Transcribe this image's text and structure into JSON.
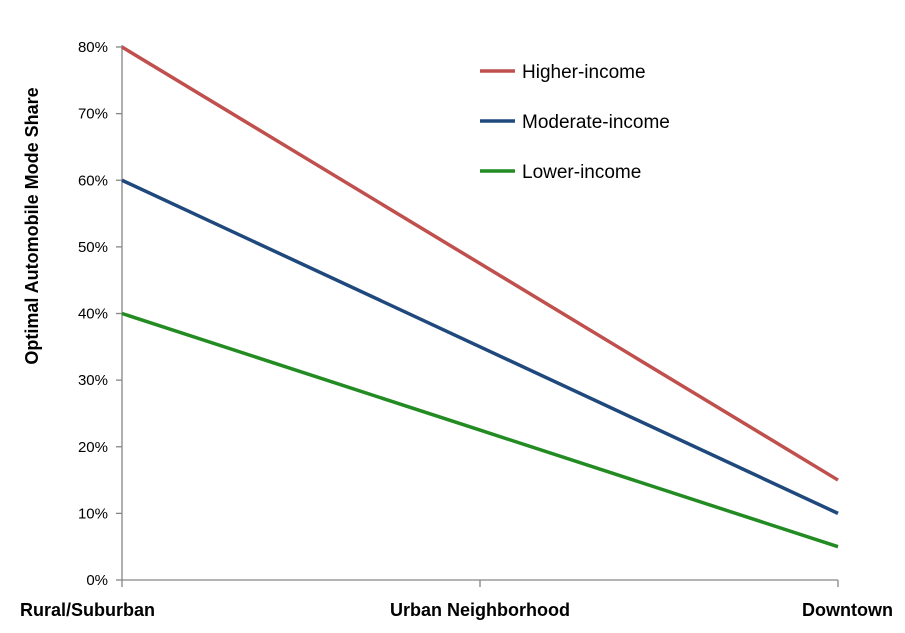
{
  "chart_data": {
    "type": "line",
    "title": "",
    "xlabel": "",
    "ylabel": "Optimal Automobile Mode Share",
    "categories": [
      "Rural/Suburban",
      "Urban Neighborhood",
      "Downtown"
    ],
    "y_ticks": [
      "0%",
      "10%",
      "20%",
      "30%",
      "40%",
      "50%",
      "60%",
      "70%",
      "80%"
    ],
    "ylim": [
      0,
      80
    ],
    "grid": false,
    "legend_position": "top-right",
    "series": [
      {
        "name": "Higher-income",
        "color": "#C0504D",
        "values": [
          80,
          47.5,
          15
        ]
      },
      {
        "name": "Moderate-income",
        "color": "#1F497D",
        "values": [
          60,
          35,
          10
        ]
      },
      {
        "name": "Lower-income",
        "color": "#228B22",
        "values": [
          40,
          22.5,
          5
        ]
      }
    ]
  }
}
